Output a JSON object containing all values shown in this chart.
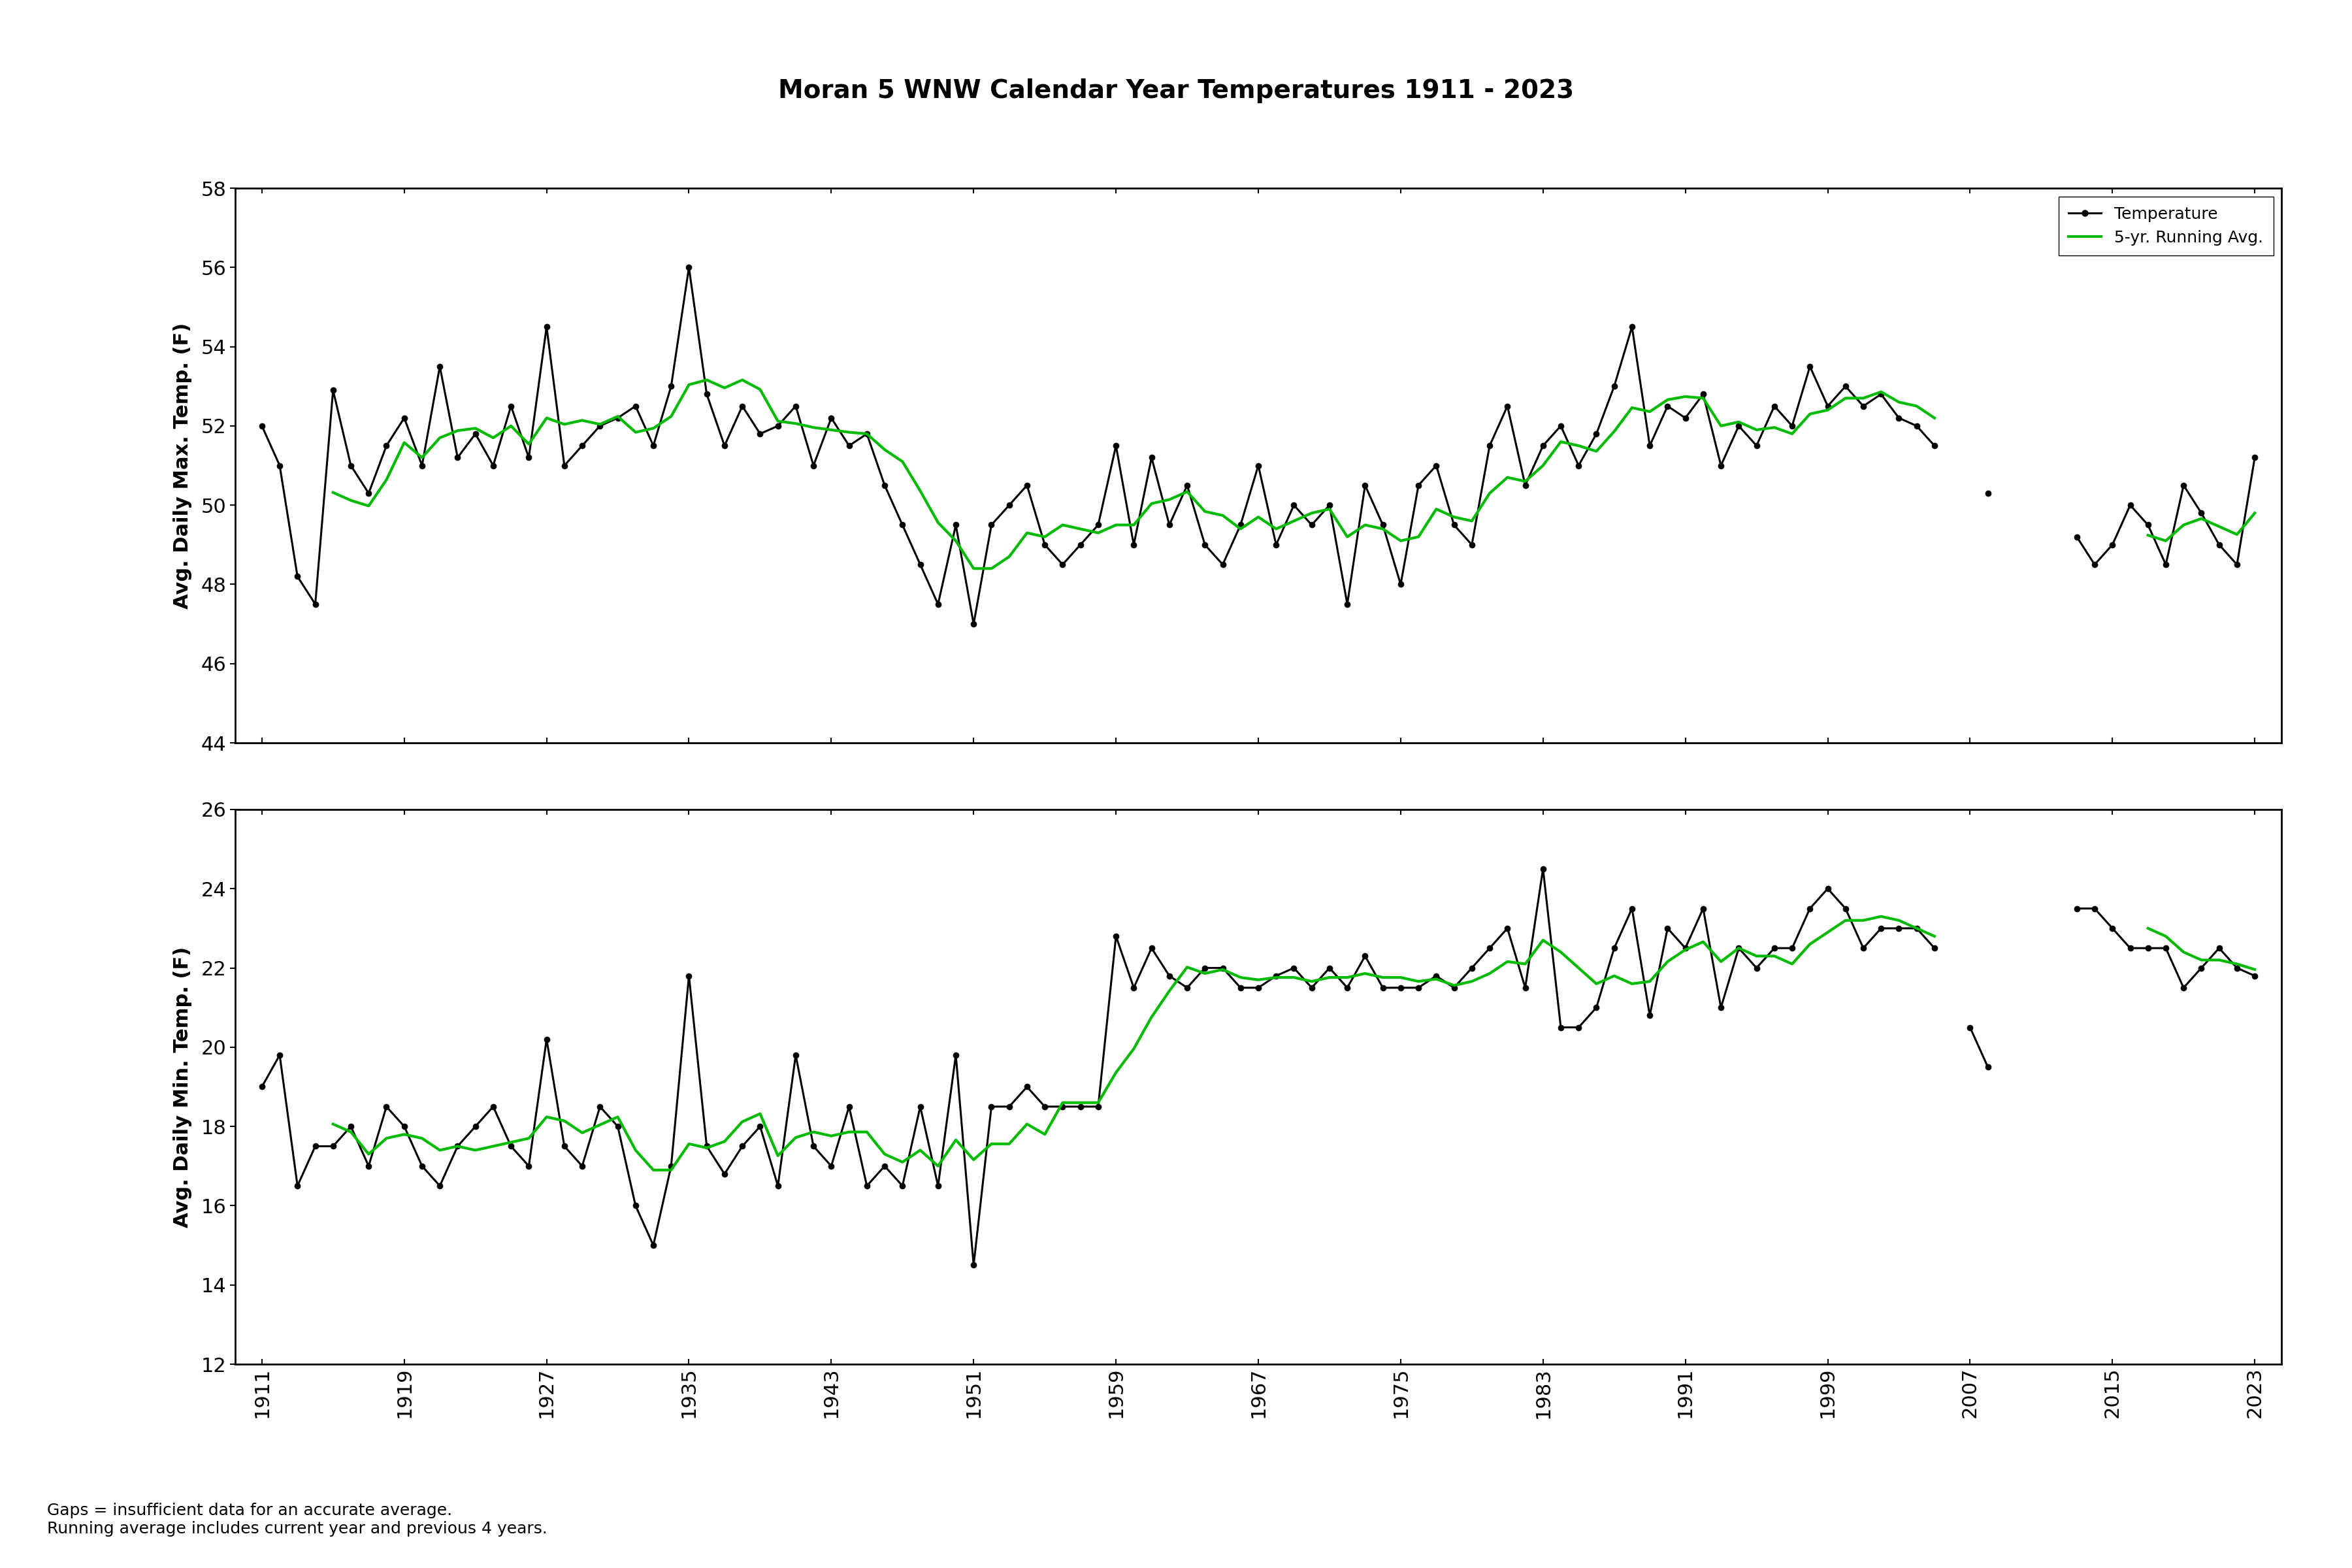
{
  "title": "Moran 5 WNW Calendar Year Temperatures 1911 - 2023",
  "ylabel_max": "Avg. Daily Max. Temp. (F)",
  "ylabel_min": "Avg. Daily Min. Temp. (F)",
  "ylim_max": [
    44,
    58
  ],
  "ylim_min": [
    12,
    26
  ],
  "yticks_max": [
    44,
    46,
    48,
    50,
    52,
    54,
    56,
    58
  ],
  "yticks_min": [
    12,
    14,
    16,
    18,
    20,
    22,
    24,
    26
  ],
  "xticks": [
    1911,
    1919,
    1927,
    1935,
    1943,
    1951,
    1959,
    1967,
    1975,
    1983,
    1991,
    1999,
    2007,
    2015,
    2023
  ],
  "xlim": [
    1909.5,
    2024.5
  ],
  "footnote1": "Gaps = insufficient data for an accurate average.",
  "footnote2": "Running average includes current year and previous 4 years.",
  "legend_temp": "Temperature",
  "legend_avg": "5-yr. Running Avg.",
  "line_color": "#000000",
  "avg_color": "#00bb00",
  "max_temps": {
    "1911": 52.0,
    "1912": 51.0,
    "1913": 48.2,
    "1914": 47.5,
    "1915": 52.9,
    "1916": 51.0,
    "1917": 50.3,
    "1918": 51.5,
    "1919": 52.2,
    "1920": 51.0,
    "1921": 53.5,
    "1922": 51.2,
    "1923": 51.8,
    "1924": 51.0,
    "1925": 52.5,
    "1926": 51.2,
    "1927": 54.5,
    "1928": 51.0,
    "1929": 51.5,
    "1930": 52.0,
    "1931": 52.2,
    "1932": 52.5,
    "1933": 51.5,
    "1934": 53.0,
    "1935": 56.0,
    "1936": 52.8,
    "1937": 51.5,
    "1938": 52.5,
    "1939": 51.8,
    "1940": 52.0,
    "1941": 52.5,
    "1942": 51.0,
    "1943": 52.2,
    "1944": 51.5,
    "1945": 51.8,
    "1946": 50.5,
    "1947": 49.5,
    "1948": 48.5,
    "1949": 47.5,
    "1950": 49.5,
    "1951": 47.0,
    "1952": 49.5,
    "1953": 50.0,
    "1954": 50.5,
    "1955": 49.0,
    "1956": 48.5,
    "1957": 49.0,
    "1958": 49.5,
    "1959": 51.5,
    "1960": 49.0,
    "1961": 51.2,
    "1962": 49.5,
    "1963": 50.5,
    "1964": 49.0,
    "1965": 48.5,
    "1966": 49.5,
    "1967": 51.0,
    "1968": 49.0,
    "1969": 50.0,
    "1970": 49.5,
    "1971": 50.0,
    "1972": 47.5,
    "1973": 50.5,
    "1974": 49.5,
    "1975": 48.0,
    "1976": 50.5,
    "1977": 51.0,
    "1978": 49.5,
    "1979": 49.0,
    "1980": 51.5,
    "1981": 52.5,
    "1982": 50.5,
    "1983": 51.5,
    "1984": 52.0,
    "1985": 51.0,
    "1986": 51.8,
    "1987": 53.0,
    "1988": 54.5,
    "1989": 51.5,
    "1990": 52.5,
    "1991": 52.2,
    "1992": 52.8,
    "1993": 51.0,
    "1994": 52.0,
    "1995": 51.5,
    "1996": 52.5,
    "1997": 52.0,
    "1998": 53.5,
    "1999": 52.5,
    "2000": 53.0,
    "2001": 52.5,
    "2002": 52.8,
    "2003": 52.2,
    "2004": 52.0,
    "2005": 51.5,
    "2008": 50.3,
    "2013": 49.2,
    "2014": 48.5,
    "2015": 49.0,
    "2016": 50.0,
    "2017": 49.5,
    "2018": 48.5,
    "2019": 50.5,
    "2020": 49.8,
    "2021": 49.0,
    "2022": 48.5,
    "2023": 51.2
  },
  "min_temps": {
    "1911": 19.0,
    "1912": 19.8,
    "1913": 16.5,
    "1914": 17.5,
    "1915": 17.5,
    "1916": 18.0,
    "1917": 17.0,
    "1918": 18.5,
    "1919": 18.0,
    "1920": 17.0,
    "1921": 16.5,
    "1922": 17.5,
    "1923": 18.0,
    "1924": 18.5,
    "1925": 17.5,
    "1926": 17.0,
    "1927": 20.2,
    "1928": 17.5,
    "1929": 17.0,
    "1930": 18.5,
    "1931": 18.0,
    "1932": 16.0,
    "1933": 15.0,
    "1934": 17.0,
    "1935": 21.8,
    "1936": 17.5,
    "1937": 16.8,
    "1938": 17.5,
    "1939": 18.0,
    "1940": 16.5,
    "1941": 19.8,
    "1942": 17.5,
    "1943": 17.0,
    "1944": 18.5,
    "1945": 16.5,
    "1946": 17.0,
    "1947": 16.5,
    "1948": 18.5,
    "1949": 16.5,
    "1950": 19.8,
    "1951": 14.5,
    "1952": 18.5,
    "1953": 18.5,
    "1954": 19.0,
    "1955": 18.5,
    "1956": 18.5,
    "1957": 18.5,
    "1958": 18.5,
    "1959": 22.8,
    "1960": 21.5,
    "1961": 22.5,
    "1962": 21.8,
    "1963": 21.5,
    "1964": 22.0,
    "1965": 22.0,
    "1966": 21.5,
    "1967": 21.5,
    "1968": 21.8,
    "1969": 22.0,
    "1970": 21.5,
    "1971": 22.0,
    "1972": 21.5,
    "1973": 22.3,
    "1974": 21.5,
    "1975": 21.5,
    "1976": 21.5,
    "1977": 21.8,
    "1978": 21.5,
    "1979": 22.0,
    "1980": 22.5,
    "1981": 23.0,
    "1982": 21.5,
    "1983": 24.5,
    "1984": 20.5,
    "1985": 20.5,
    "1986": 21.0,
    "1987": 22.5,
    "1988": 23.5,
    "1989": 20.8,
    "1990": 23.0,
    "1991": 22.5,
    "1992": 23.5,
    "1993": 21.0,
    "1994": 22.5,
    "1995": 22.0,
    "1996": 22.5,
    "1997": 22.5,
    "1998": 23.5,
    "1999": 24.0,
    "2000": 23.5,
    "2001": 22.5,
    "2002": 23.0,
    "2003": 23.0,
    "2004": 23.0,
    "2005": 22.5,
    "2007": 20.5,
    "2008": 19.5,
    "2013": 23.5,
    "2014": 23.5,
    "2015": 23.0,
    "2016": 22.5,
    "2017": 22.5,
    "2018": 22.5,
    "2019": 21.5,
    "2020": 22.0,
    "2021": 22.5,
    "2022": 22.0,
    "2023": 21.8
  }
}
